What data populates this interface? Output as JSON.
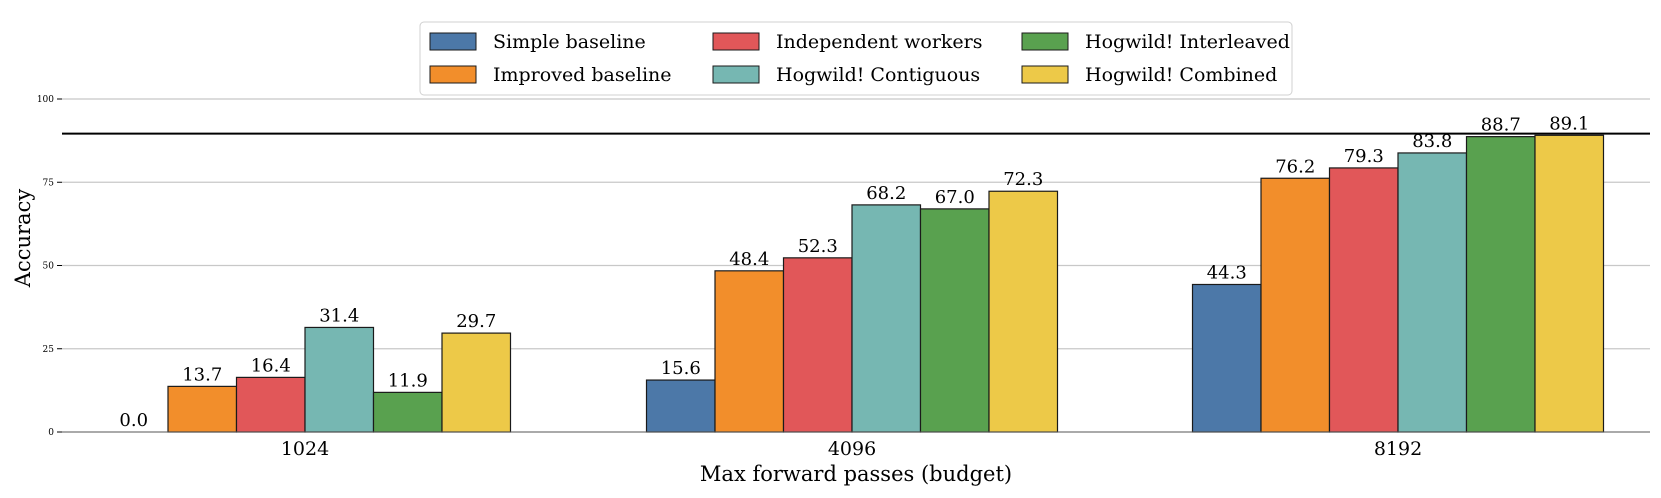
{
  "chart_data": {
    "type": "bar",
    "categories": [
      "1024",
      "4096",
      "8192"
    ],
    "series": [
      {
        "name": "Simple baseline",
        "color": "#4c78a8",
        "values": [
          0.0,
          15.6,
          44.3
        ]
      },
      {
        "name": "Improved baseline",
        "color": "#f28e2b",
        "values": [
          13.7,
          48.4,
          76.2
        ]
      },
      {
        "name": "Independent workers",
        "color": "#e15759",
        "values": [
          16.4,
          52.3,
          79.3
        ]
      },
      {
        "name": "Hogwild! Contiguous",
        "color": "#76b7b2",
        "values": [
          31.4,
          68.2,
          83.8
        ]
      },
      {
        "name": "Hogwild! Interleaved",
        "color": "#59a14f",
        "values": [
          11.9,
          67.0,
          88.7
        ]
      },
      {
        "name": "Hogwild! Combined",
        "color": "#edc948",
        "values": [
          29.7,
          72.3,
          89.1
        ]
      }
    ],
    "data_labels": [
      [
        "0.0",
        "15.6",
        "44.3"
      ],
      [
        "13.7",
        "48.4",
        "76.2"
      ],
      [
        "16.4",
        "52.3",
        "79.3"
      ],
      [
        "31.4",
        "68.2",
        "83.8"
      ],
      [
        "11.9",
        "67.0",
        "88.7"
      ],
      [
        "29.7",
        "72.3",
        "89.1"
      ]
    ],
    "xlabel": "Max forward passes (budget)",
    "ylabel": "Accuracy",
    "ylim": [
      0,
      100
    ],
    "yticks": [
      "0",
      "25",
      "50",
      "75",
      "100"
    ],
    "reference_line": 89.6,
    "grid": "horizontal",
    "legend_position": "top-center",
    "legend_columns": 3
  }
}
